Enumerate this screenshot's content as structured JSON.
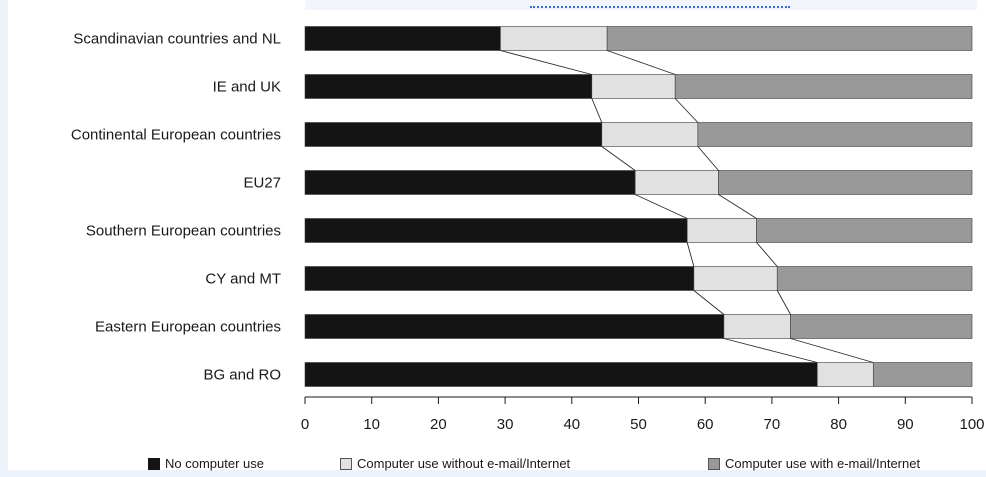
{
  "chart_data": {
    "type": "bar",
    "stacked": true,
    "orientation": "horizontal",
    "title": "",
    "xlabel": "",
    "ylabel": "",
    "xlim": [
      0,
      100
    ],
    "xticks": [
      "0",
      "10",
      "20",
      "30",
      "40",
      "50",
      "60",
      "70",
      "80",
      "90",
      "100"
    ],
    "grid": false,
    "legend_position": "bottom",
    "categories": [
      "Scandinavian countries and NL",
      "IE and UK",
      "Continental European countries",
      "EU27",
      "Southern European countries",
      "CY and MT",
      "Eastern European countries",
      "BG and RO"
    ],
    "series": [
      {
        "name": "No computer use",
        "color": "#141414",
        "values": [
          29.3,
          43.0,
          44.5,
          49.5,
          57.3,
          58.3,
          62.8,
          76.8
        ]
      },
      {
        "name": "Computer use without e-mail/Internet",
        "color": "#e1e1e1",
        "values": [
          16.0,
          12.5,
          14.4,
          12.5,
          10.4,
          12.5,
          10.0,
          8.4
        ]
      },
      {
        "name": "Computer use with e-mail/Internet",
        "color": "#999999",
        "values": [
          54.7,
          44.5,
          41.1,
          38.0,
          32.3,
          29.2,
          27.2,
          14.8
        ]
      }
    ],
    "connector_lines": true
  }
}
